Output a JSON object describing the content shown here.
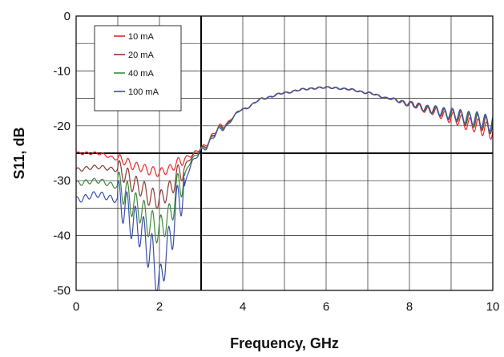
{
  "chart_data": {
    "type": "line",
    "title": "",
    "xlabel": "Frequency, GHz",
    "ylabel": "S11, dB",
    "xlim": [
      0,
      10
    ],
    "ylim": [
      -50,
      0
    ],
    "x_ticks": [
      0,
      2,
      4,
      6,
      8,
      10
    ],
    "y_ticks": [
      0,
      -10,
      -20,
      -30,
      -40,
      -50
    ],
    "x_tick_labels": [
      "0",
      "2",
      "4",
      "6",
      "8",
      "10"
    ],
    "y_tick_labels": [
      "0",
      "-10",
      "-20",
      "-30",
      "-40",
      "-50"
    ],
    "grid": true,
    "legend_position": "top-left",
    "reference_lines": [
      {
        "axis": "x",
        "value": 3
      },
      {
        "axis": "y",
        "value": -25
      }
    ],
    "x": [
      0.0,
      0.5,
      1.0,
      1.5,
      1.8,
      2.0,
      2.2,
      2.5,
      2.8,
      3.0,
      3.5,
      4.0,
      4.5,
      5.0,
      5.5,
      6.0,
      6.5,
      7.0,
      7.5,
      8.0,
      8.5,
      9.0,
      9.5,
      10.0
    ],
    "series": [
      {
        "name": "10 mA",
        "color": "#e8282c",
        "values": [
          -25,
          -25,
          -26,
          -27.5,
          -28.2,
          -28.5,
          -28,
          -26.5,
          -25.2,
          -24,
          -20,
          -17,
          -15,
          -14,
          -13.3,
          -13,
          -13.3,
          -14,
          -15,
          -16,
          -17.2,
          -18.5,
          -19.8,
          -21
        ]
      },
      {
        "name": "20 mA",
        "color": "#8b3a36",
        "values": [
          -28,
          -27.5,
          -28,
          -31,
          -33,
          -33.5,
          -32,
          -28.5,
          -25.5,
          -24.2,
          -20.2,
          -17,
          -15,
          -14,
          -13.3,
          -13,
          -13.3,
          -14,
          -15,
          -16,
          -17,
          -18,
          -19,
          -20
        ]
      },
      {
        "name": "40 mA",
        "color": "#3d8a3d",
        "values": [
          -30.5,
          -30,
          -31,
          -35,
          -38,
          -39,
          -37,
          -30.5,
          -26,
          -24.3,
          -20.3,
          -17,
          -15,
          -14,
          -13.3,
          -13,
          -13.3,
          -14,
          -15,
          -16,
          -17,
          -17.8,
          -18.8,
          -19.8
        ]
      },
      {
        "name": "100 mA",
        "color": "#3a4fa8",
        "values": [
          -33.5,
          -32.5,
          -33.5,
          -38.5,
          -43,
          -49,
          -42,
          -33,
          -26.5,
          -24.5,
          -20.5,
          -17,
          -15,
          -14,
          -13.3,
          -13,
          -13.3,
          -14,
          -15,
          -16,
          -17,
          -17.8,
          -18.6,
          -19.6
        ]
      }
    ]
  }
}
